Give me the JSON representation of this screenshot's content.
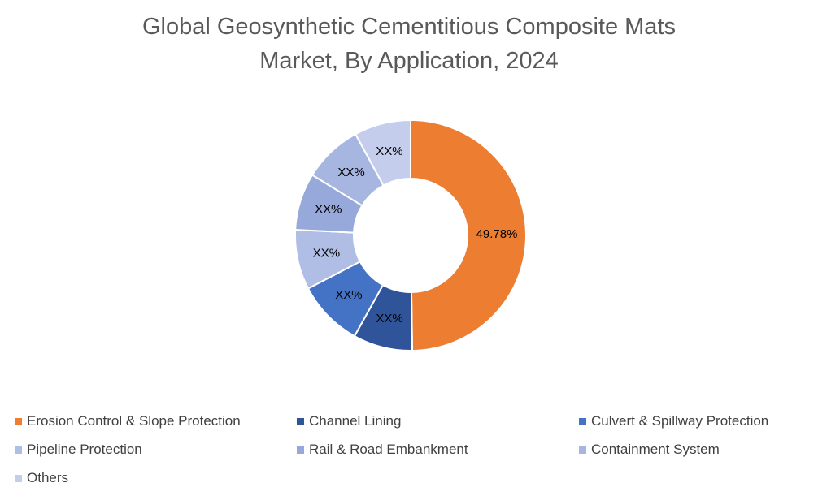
{
  "chart_data": {
    "type": "donut",
    "title": "Global Geosynthetic Cementitious Composite Mats Market, By Application, 2024",
    "categories": [
      "Erosion Control & Slope Protection",
      "Channel Lining",
      "Culvert & Spillway Protection",
      "Pipeline Protection",
      "Rail & Road Embankment",
      "Containment System",
      "Others"
    ],
    "values": [
      49.78,
      8.3,
      9.3,
      8.4,
      8.0,
      8.3,
      7.92
    ],
    "value_labels": [
      "49.78%",
      "XX%",
      "XX%",
      "XX%",
      "XX%",
      "XX%",
      "XX%"
    ],
    "colors": [
      "#ED7D31",
      "#2F549A",
      "#4472C4",
      "#B0BDE4",
      "#97A9DA",
      "#A7B6E0",
      "#C4CDEB"
    ]
  }
}
